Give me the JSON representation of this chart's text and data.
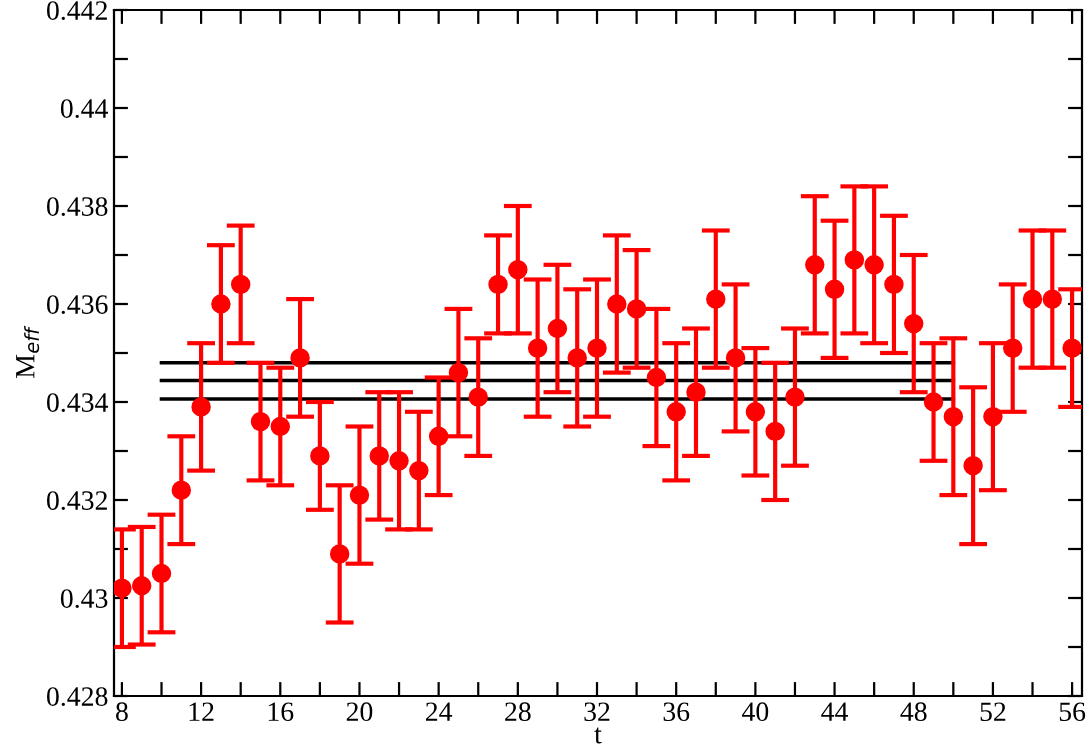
{
  "chart_data": {
    "type": "scatter",
    "xlabel": "t",
    "ylabel": "M$_{eff}$",
    "xlim": [
      7.6,
      56.5
    ],
    "ylim": [
      0.428,
      0.442
    ],
    "xticks": [
      8,
      {
        "value": 10,
        "label": null
      },
      12,
      {
        "value": 14,
        "label": null
      },
      16,
      {
        "value": 18,
        "label": null
      },
      20,
      {
        "value": 22,
        "label": null
      },
      24,
      {
        "value": 26,
        "label": null
      },
      28,
      {
        "value": 30,
        "label": null
      },
      32,
      {
        "value": 34,
        "label": null
      },
      36,
      {
        "value": 38,
        "label": null
      },
      40,
      {
        "value": 42,
        "label": null
      },
      44,
      {
        "value": 46,
        "label": null
      },
      48,
      {
        "value": 50,
        "label": null
      },
      52,
      {
        "value": 54,
        "label": null
      },
      56
    ],
    "yticks": [
      0.428,
      {
        "value": 0.429,
        "label": null
      },
      {
        "value": 0.43,
        "label": "0.43"
      },
      {
        "value": 0.431,
        "label": null
      },
      0.432,
      {
        "value": 0.433,
        "label": null
      },
      0.434,
      {
        "value": 0.435,
        "label": null
      },
      0.436,
      {
        "value": 0.437,
        "label": null
      },
      0.438,
      {
        "value": 0.439,
        "label": null
      },
      {
        "value": 0.44,
        "label": "0.44"
      },
      {
        "value": 0.441,
        "label": null
      },
      0.442
    ],
    "grid": false,
    "series": [
      {
        "marker": "circle",
        "color": "#ff0000",
        "x": [
          8,
          9,
          10,
          11,
          12,
          13,
          14,
          15,
          16,
          17,
          18,
          19,
          20,
          21,
          22,
          23,
          24,
          25,
          26,
          27,
          28,
          29,
          30,
          31,
          32,
          33,
          34,
          35,
          36,
          37,
          38,
          39,
          40,
          41,
          42,
          43,
          44,
          45,
          46,
          47,
          48,
          49,
          50,
          51,
          52,
          53,
          54,
          55,
          56
        ],
        "values": [
          0.4302,
          0.43025,
          0.4305,
          0.4322,
          0.4339,
          0.436,
          0.4364,
          0.4336,
          0.4335,
          0.4349,
          0.4329,
          0.4309,
          0.4321,
          0.4329,
          0.4328,
          0.4326,
          0.4333,
          0.4346,
          0.4341,
          0.4364,
          0.4367,
          0.4351,
          0.4355,
          0.4349,
          0.4351,
          0.436,
          0.4359,
          0.4345,
          0.4338,
          0.4342,
          0.4361,
          0.4349,
          0.4338,
          0.4334,
          0.4341,
          0.4368,
          0.4363,
          0.4369,
          0.4368,
          0.4364,
          0.4356,
          0.434,
          0.4337,
          0.4327,
          0.4337,
          0.4351,
          0.4361,
          0.4361,
          0.4351
        ],
        "errors": [
          0.0012,
          0.0012,
          0.0012,
          0.0011,
          0.0013,
          0.0012,
          0.0012,
          0.0012,
          0.0012,
          0.0012,
          0.0011,
          0.0014,
          0.0014,
          0.0013,
          0.0014,
          0.0012,
          0.0012,
          0.0013,
          0.0012,
          0.001,
          0.0013,
          0.0014,
          0.0013,
          0.0014,
          0.0014,
          0.0014,
          0.0012,
          0.0014,
          0.0014,
          0.0013,
          0.0014,
          0.0015,
          0.0013,
          0.0014,
          0.0014,
          0.0014,
          0.0014,
          0.0015,
          0.0016,
          0.0014,
          0.0014,
          0.0012,
          0.0016,
          0.0016,
          0.0015,
          0.0013,
          0.0014,
          0.0014,
          0.0012
        ]
      },
      {
        "type": "line",
        "color": "#000000",
        "x": [
          10,
          50
        ],
        "values": [
          0.4348,
          0.4348
        ]
      },
      {
        "type": "line",
        "color": "#000000",
        "x": [
          10,
          50
        ],
        "values": [
          0.43444,
          0.43444
        ]
      },
      {
        "type": "line",
        "color": "#000000",
        "x": [
          10,
          50
        ],
        "values": [
          0.43406,
          0.43406
        ]
      }
    ]
  }
}
